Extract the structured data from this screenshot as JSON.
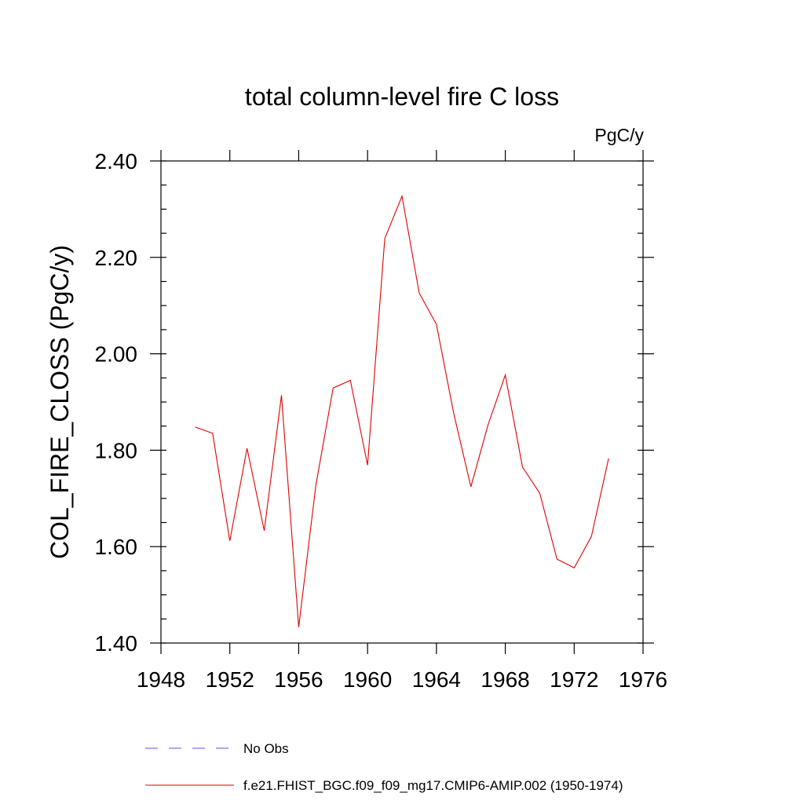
{
  "chart_data": {
    "type": "line",
    "title": "total column-level fire C loss",
    "units_label": "PgC/y",
    "ylabel": "COL_FIRE_CLOSS  (PgC/y)",
    "xlabel": "",
    "xlim": [
      1948,
      1976
    ],
    "ylim": [
      1.4,
      2.4
    ],
    "x_ticks": [
      "1948",
      "1952",
      "1956",
      "1960",
      "1964",
      "1968",
      "1972",
      "1976"
    ],
    "y_ticks": [
      "1.40",
      "1.60",
      "1.80",
      "2.00",
      "2.20",
      "2.40"
    ],
    "grid": false,
    "series": [
      {
        "name": "f.e21.FHIST_BGC.f09_f09_mg17.CMIP6-AMIP.002 (1950-1974)",
        "color": "#e00000",
        "x": [
          1950,
          1951,
          1952,
          1953,
          1954,
          1955,
          1956,
          1957,
          1958,
          1959,
          1960,
          1961,
          1962,
          1963,
          1964,
          1965,
          1966,
          1967,
          1968,
          1969,
          1970,
          1971,
          1972,
          1973,
          1974
        ],
        "y": [
          1.848,
          1.835,
          1.612,
          1.804,
          1.633,
          1.914,
          1.433,
          1.728,
          1.929,
          1.945,
          1.769,
          2.239,
          2.327,
          2.126,
          2.061,
          1.877,
          1.724,
          1.853,
          1.956,
          1.765,
          1.711,
          1.574,
          1.556,
          1.621,
          1.783
        ]
      }
    ],
    "legend": [
      {
        "label": "No Obs",
        "color": "#5555ff",
        "style": "dashed"
      },
      {
        "label": "f.e21.FHIST_BGC.f09_f09_mg17.CMIP6-AMIP.002 (1950-1974)",
        "color": "#e00000",
        "style": "solid"
      }
    ],
    "legend_position": "bottom"
  }
}
